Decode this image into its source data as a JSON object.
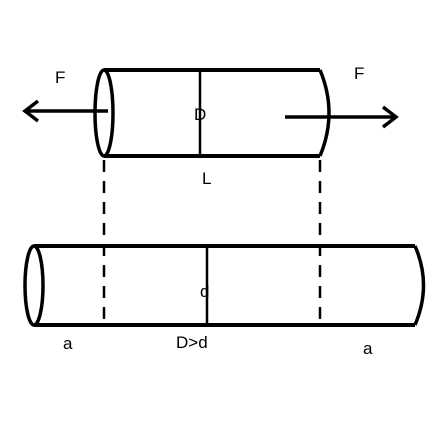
{
  "labels": {
    "force_left": "F",
    "force_right": "F",
    "diameter_upper": "D",
    "length": "L",
    "diameter_lower": "d",
    "relation": "D>d",
    "extension_left": "a",
    "extension_right": "a"
  }
}
